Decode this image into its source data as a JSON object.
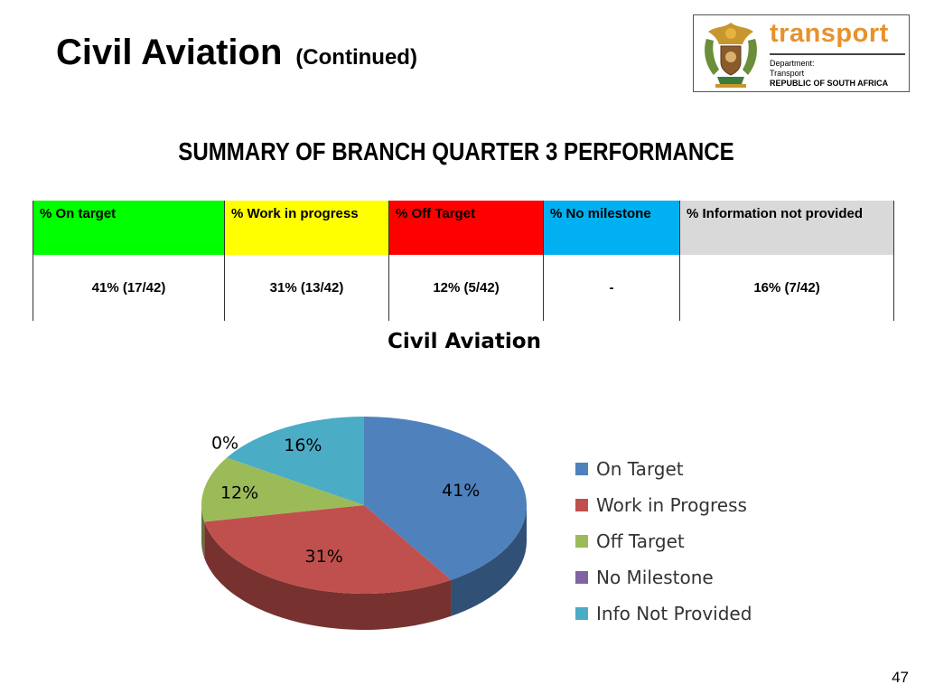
{
  "header": {
    "title": "Civil Aviation",
    "subtitle": "(Continued)"
  },
  "logo": {
    "wordmark": "transport",
    "line1": "Department:",
    "line2": "Transport",
    "line3": "REPUBLIC OF SOUTH AFRICA",
    "accent_color": "#e8912b"
  },
  "summary": {
    "heading": "SUMMARY OF BRANCH QUARTER 3 PERFORMANCE"
  },
  "table": {
    "headers": [
      "% On target",
      "% Work in progress",
      "% Off Target",
      "% No milestone",
      "% Information not provided"
    ],
    "values": [
      "41% (17/42)",
      "31% (13/42)",
      "12% (5/42)",
      "-",
      "16% (7/42)"
    ],
    "header_colors": [
      "#00ff00",
      "#ffff00",
      "#ff0000",
      "#00b0f0",
      "#d9d9d9"
    ]
  },
  "chart_data": {
    "type": "pie",
    "title": "Civil Aviation",
    "categories": [
      "On Target",
      "Work in Progress",
      "Off Target",
      "No Milestone",
      "Info Not Provided"
    ],
    "values": [
      41,
      31,
      12,
      0,
      16
    ],
    "labels": [
      "41%",
      "31%",
      "12%",
      "0%",
      "16%"
    ],
    "colors": [
      "#4f81bd",
      "#c0504d",
      "#9bbb59",
      "#8064a2",
      "#4bacc6"
    ],
    "legend_position": "right",
    "style": "3d"
  },
  "footer": {
    "page_number": "47"
  }
}
